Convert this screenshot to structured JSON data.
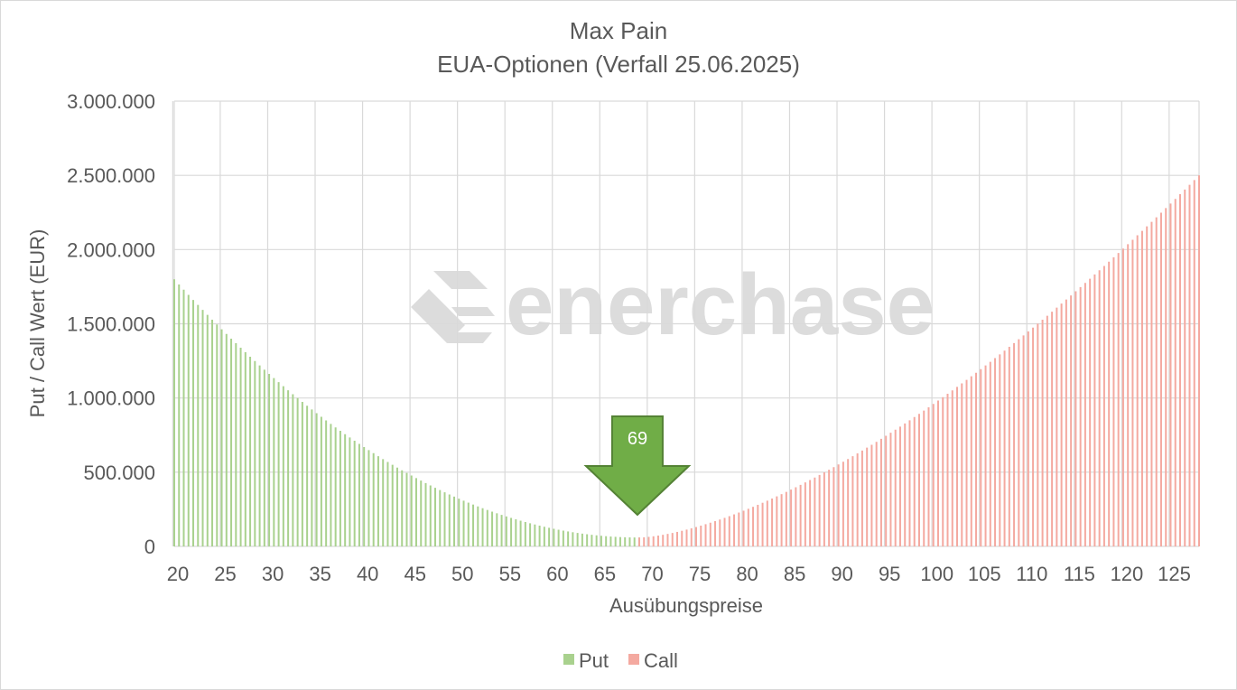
{
  "chart_data": {
    "type": "bar",
    "title": "Max Pain",
    "subtitle": "EUA-Optionen (Verfall 25.06.2025)",
    "xlabel": "Ausübungspreise",
    "ylabel": "Put / Call Wert (EUR)",
    "ylim": [
      0,
      3000000
    ],
    "yticks": [
      0,
      500000,
      1000000,
      1500000,
      2000000,
      2500000,
      3000000
    ],
    "ytick_labels": [
      "0",
      "500.000",
      "1.000.000",
      "1.500.000",
      "2.000.000",
      "2.500.000",
      "3.000.000"
    ],
    "xlim": [
      20,
      128
    ],
    "xticks": [
      20,
      25,
      30,
      35,
      40,
      45,
      50,
      55,
      60,
      65,
      70,
      75,
      80,
      85,
      90,
      95,
      100,
      105,
      110,
      115,
      120,
      125
    ],
    "grid": true,
    "legend_position": "bottom",
    "series": [
      {
        "name": "Put",
        "color": "#a9d18e",
        "points": [
          {
            "x_from": 20,
            "x_to": 69,
            "step": 0.5,
            "y_start": 1800000,
            "y_end": 60000
          }
        ]
      },
      {
        "name": "Call",
        "color": "#f4a9a0",
        "points": [
          {
            "x_from": 69,
            "x_to": 128,
            "step": 0.5,
            "y_start": 60000,
            "y_end": 2500000
          }
        ]
      }
    ],
    "annotation": {
      "label": "69",
      "x": 69,
      "color": "#70ad47",
      "icon": "down-arrow-icon"
    },
    "watermark": "enerchase"
  }
}
